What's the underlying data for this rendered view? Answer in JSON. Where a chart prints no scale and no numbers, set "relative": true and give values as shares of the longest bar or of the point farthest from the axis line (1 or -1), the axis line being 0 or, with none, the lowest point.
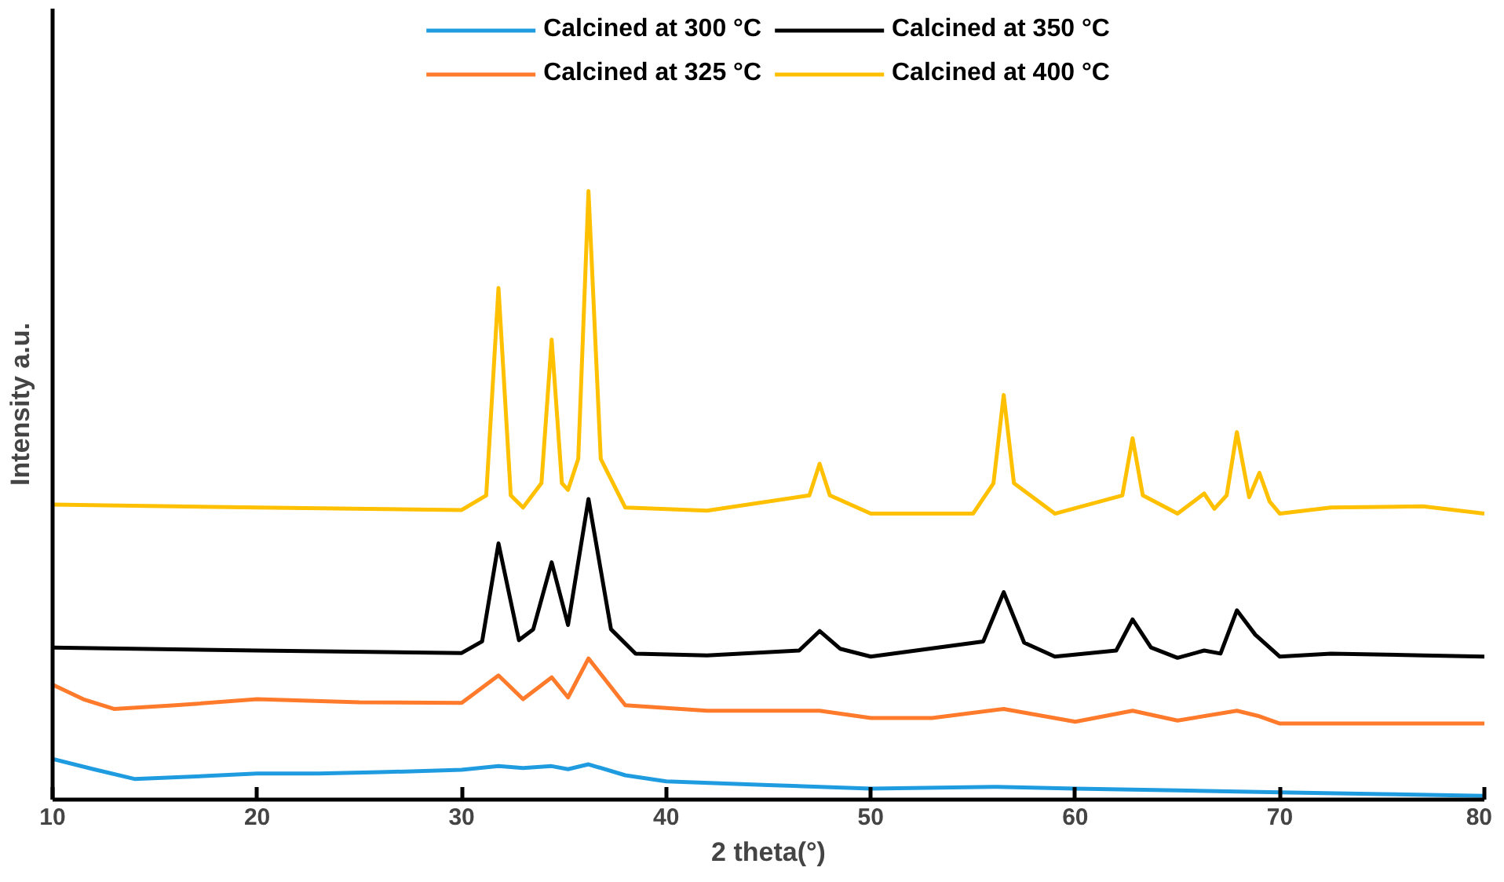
{
  "chart_data": {
    "type": "line",
    "xlabel": "2 theta(°)",
    "ylabel": "Intensity a.u.",
    "relative": true,
    "xlim": [
      10,
      80
    ],
    "xticks": [
      10,
      20,
      30,
      40,
      50,
      60,
      70,
      80
    ],
    "grid": false,
    "legend": "top",
    "marker": "none",
    "line_style": "solid",
    "series": [
      {
        "name": "Calcined at 300 °C",
        "color": "#1f9be0",
        "x": [
          10,
          12,
          14,
          17,
          20,
          23,
          26,
          30,
          31.8,
          33,
          34.4,
          35.2,
          36.2,
          38,
          40,
          45,
          50,
          56,
          60,
          65,
          70,
          75,
          80
        ],
        "values": [
          0.067,
          0.05,
          0.034,
          0.038,
          0.043,
          0.043,
          0.045,
          0.049,
          0.055,
          0.052,
          0.055,
          0.05,
          0.058,
          0.04,
          0.03,
          0.024,
          0.018,
          0.021,
          0.018,
          0.015,
          0.012,
          0.009,
          0.006
        ]
      },
      {
        "name": "Calcined at 325 °C",
        "color": "#ff7a2a",
        "x": [
          10,
          11.5,
          13,
          16,
          20,
          25,
          30,
          31.8,
          33,
          34.4,
          35.2,
          36.2,
          38,
          42,
          47.5,
          50,
          53,
          56.5,
          60,
          62.8,
          65,
          67.9,
          69,
          70,
          75,
          80
        ],
        "values": [
          0.189,
          0.165,
          0.149,
          0.155,
          0.165,
          0.16,
          0.159,
          0.204,
          0.165,
          0.201,
          0.168,
          0.232,
          0.155,
          0.146,
          0.146,
          0.134,
          0.134,
          0.149,
          0.128,
          0.146,
          0.13,
          0.146,
          0.137,
          0.125,
          0.125,
          0.125
        ]
      },
      {
        "name": "Calcined at 350 °C",
        "color": "#000000",
        "x": [
          10,
          20,
          30,
          31,
          31.8,
          32.8,
          33.5,
          34.4,
          35.2,
          36.2,
          37.3,
          38.5,
          42,
          46.5,
          47.5,
          48.5,
          50,
          55.5,
          56.5,
          57.5,
          59,
          62,
          62.8,
          63.7,
          65,
          66.3,
          67.1,
          67.9,
          68.8,
          70,
          72.5,
          77,
          80
        ],
        "values": [
          0.25,
          0.245,
          0.241,
          0.26,
          0.421,
          0.262,
          0.28,
          0.39,
          0.287,
          0.494,
          0.28,
          0.24,
          0.237,
          0.245,
          0.277,
          0.248,
          0.235,
          0.26,
          0.341,
          0.258,
          0.235,
          0.245,
          0.296,
          0.25,
          0.233,
          0.245,
          0.24,
          0.311,
          0.271,
          0.235,
          0.24,
          0.237,
          0.235
        ]
      },
      {
        "name": "Calcined at 400 °C",
        "color": "#ffc000",
        "x": [
          10,
          20,
          30,
          31.2,
          31.8,
          32.4,
          33,
          33.9,
          34.4,
          34.9,
          35.2,
          35.7,
          36.2,
          36.8,
          38,
          42,
          47,
          47.5,
          48,
          50,
          55,
          56,
          56.5,
          57,
          59,
          62.3,
          62.8,
          63.3,
          65,
          66.3,
          66.8,
          67.4,
          67.9,
          68.5,
          69,
          69.5,
          70,
          72.5,
          77,
          80
        ],
        "values": [
          0.485,
          0.48,
          0.476,
          0.5,
          0.841,
          0.5,
          0.48,
          0.52,
          0.756,
          0.52,
          0.509,
          0.56,
          1.0,
          0.56,
          0.48,
          0.475,
          0.5,
          0.552,
          0.5,
          0.47,
          0.47,
          0.52,
          0.665,
          0.52,
          0.47,
          0.5,
          0.594,
          0.5,
          0.47,
          0.503,
          0.478,
          0.5,
          0.604,
          0.497,
          0.537,
          0.49,
          0.47,
          0.48,
          0.482,
          0.47
        ]
      }
    ]
  }
}
